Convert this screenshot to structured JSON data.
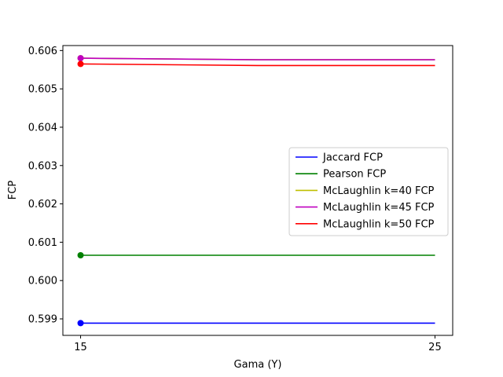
{
  "chart_data": {
    "type": "line",
    "xlabel": "Gama (Y)",
    "ylabel": "FCP",
    "xlim": [
      14.5,
      25.5
    ],
    "ylim": [
      0.59857,
      0.60613
    ],
    "xticks": [
      15,
      25
    ],
    "yticks": [
      0.599,
      0.6,
      0.601,
      0.602,
      0.603,
      0.604,
      0.605,
      0.606
    ],
    "ytick_labels": [
      "0.599",
      "0.600",
      "0.601",
      "0.602",
      "0.603",
      "0.604",
      "0.605",
      "0.606"
    ],
    "grid": false,
    "legend_position": "center-right",
    "series": [
      {
        "name": "Jaccard FCP",
        "color": "#0000ff",
        "x": [
          15,
          20,
          25
        ],
        "y": [
          0.59889,
          0.59889,
          0.59889
        ]
      },
      {
        "name": "Pearson FCP",
        "color": "#008000",
        "x": [
          15,
          20,
          25
        ],
        "y": [
          0.60066,
          0.60066,
          0.60066
        ]
      },
      {
        "name": "McLaughlin k=40 FCP",
        "color": "#bfbf00",
        "x": [
          15,
          20,
          25
        ],
        "y": [
          0.6058,
          0.60576,
          0.60576
        ]
      },
      {
        "name": "McLaughlin k=45 FCP",
        "color": "#bf00bf",
        "x": [
          15,
          20,
          25
        ],
        "y": [
          0.6058,
          0.60576,
          0.60576
        ]
      },
      {
        "name": "McLaughlin k=50 FCP",
        "color": "#ff0000",
        "x": [
          15,
          20,
          25
        ],
        "y": [
          0.60565,
          0.60561,
          0.60561
        ]
      }
    ]
  }
}
